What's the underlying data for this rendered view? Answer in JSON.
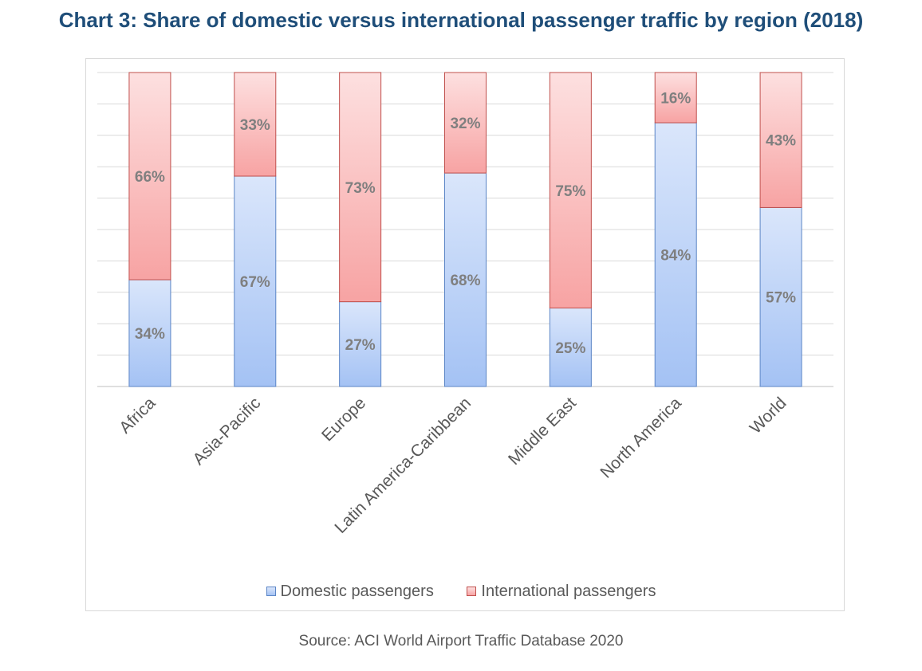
{
  "title": "Chart 3: Share of domestic versus international passenger traffic by region (2018)",
  "source": "Source: ACI World Airport Traffic Database 2020",
  "chart_data": {
    "type": "bar",
    "stacked": true,
    "percent_stacked": true,
    "categories": [
      "Africa",
      "Asia-Pacific",
      "Europe",
      "Latin America-Caribbean",
      "Middle East",
      "North America",
      "World"
    ],
    "series": [
      {
        "name": "Domestic passengers",
        "values": [
          34,
          67,
          27,
          68,
          25,
          84,
          57
        ],
        "labels": [
          "34%",
          "67%",
          "27%",
          "68%",
          "25%",
          "84%",
          "57%"
        ],
        "color_top": "#dae6fb",
        "color_bottom": "#a4c2f4",
        "border": "#5b85c6"
      },
      {
        "name": "International passengers",
        "values": [
          66,
          33,
          73,
          32,
          75,
          16,
          43
        ],
        "labels": [
          "66%",
          "33%",
          "73%",
          "32%",
          "75%",
          "16%",
          "43%"
        ],
        "color_top": "#fde0e0",
        "color_bottom": "#f7a3a3",
        "border": "#c0504d"
      }
    ],
    "ylim": [
      0,
      100
    ],
    "xlabel": "",
    "ylabel": "",
    "grid": true,
    "legend_position": "bottom"
  }
}
